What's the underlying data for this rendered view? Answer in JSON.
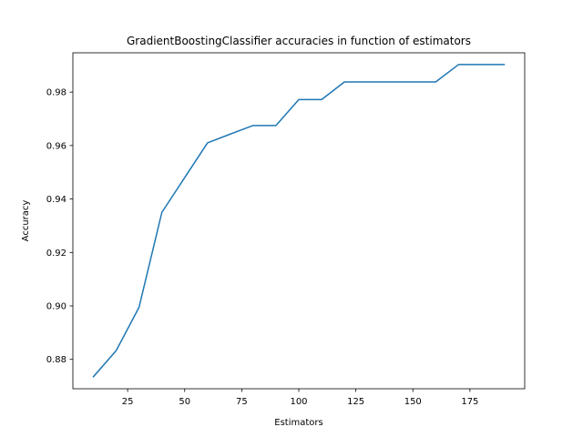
{
  "chart_data": {
    "type": "line",
    "title": "GradientBoostingClassifier accuracies in function of estimators",
    "xlabel": "Estimators",
    "ylabel": "Accuracy",
    "xlim": [
      1,
      199
    ],
    "ylim": [
      0.869,
      0.9947
    ],
    "xticks": [
      25,
      50,
      75,
      100,
      125,
      150,
      175
    ],
    "xtick_labels": [
      "25",
      "50",
      "75",
      "100",
      "125",
      "150",
      "175"
    ],
    "yticks": [
      0.88,
      0.9,
      0.92,
      0.94,
      0.96,
      0.98
    ],
    "ytick_labels": [
      "0.88",
      "0.90",
      "0.92",
      "0.94",
      "0.96",
      "0.98"
    ],
    "grid": false,
    "series": [
      {
        "color": "#1f77b4",
        "x": [
          10,
          20,
          30,
          40,
          50,
          60,
          70,
          80,
          90,
          100,
          110,
          120,
          130,
          140,
          150,
          160,
          170,
          180,
          190
        ],
        "y": [
          0.8735,
          0.8833,
          0.8995,
          0.935,
          0.948,
          0.961,
          0.9643,
          0.9675,
          0.9675,
          0.9772,
          0.9772,
          0.9838,
          0.9838,
          0.9838,
          0.9838,
          0.9838,
          0.9903,
          0.9903,
          0.9903
        ]
      }
    ]
  }
}
